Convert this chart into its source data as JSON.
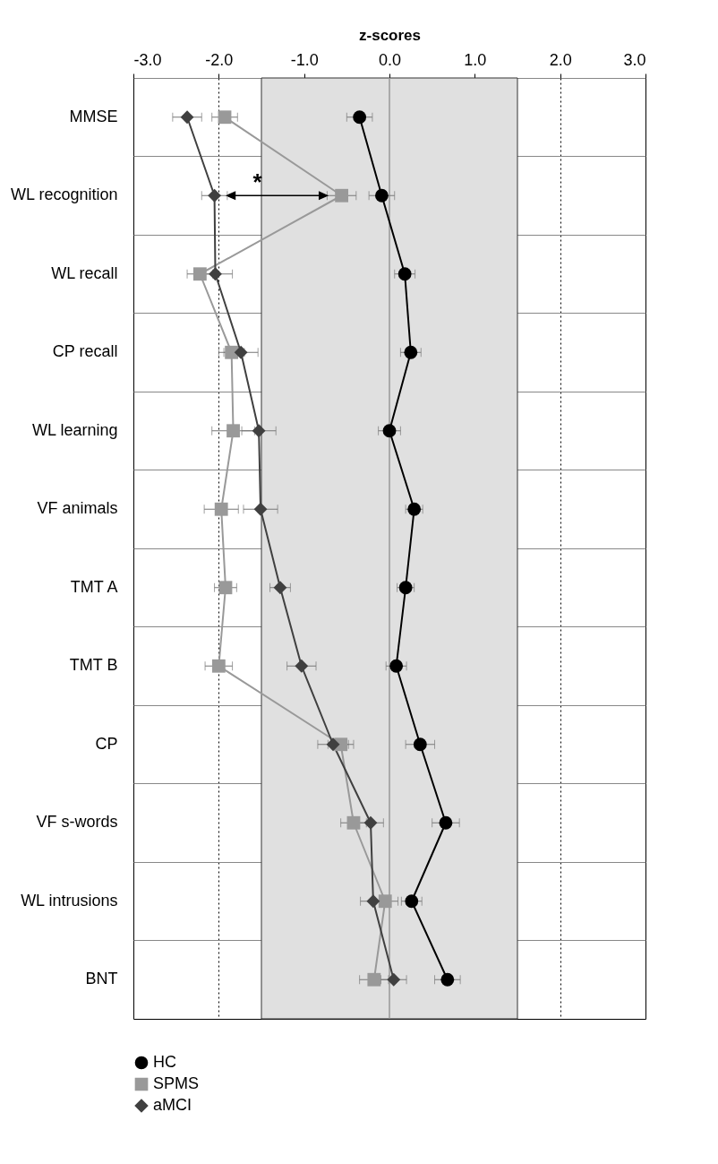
{
  "chart_data": {
    "type": "line",
    "orientation": "horizontal",
    "xlabel": "z-scores",
    "categories": [
      "MMSE",
      "WL recognition",
      "WL recall",
      "CP recall",
      "WL learning",
      "VF animals",
      "TMT A",
      "TMT B",
      "CP",
      "VF s-words",
      "WL intrusions",
      "BNT"
    ],
    "series": [
      {
        "name": "HC",
        "color": "#000000",
        "marker": "circle",
        "values": [
          -0.35,
          -0.09,
          0.18,
          0.25,
          0.0,
          0.29,
          0.19,
          0.08,
          0.36,
          0.66,
          0.26,
          0.68
        ],
        "errors": [
          0.15,
          0.15,
          0.12,
          0.12,
          0.13,
          0.1,
          0.1,
          0.12,
          0.17,
          0.16,
          0.12,
          0.15
        ]
      },
      {
        "name": "SPMS",
        "color": "#999999",
        "marker": "square",
        "values": [
          -1.93,
          -0.56,
          -2.22,
          -1.85,
          -1.83,
          -1.97,
          -1.92,
          -2.0,
          -0.57,
          -0.42,
          -0.05,
          -0.18
        ],
        "errors": [
          0.15,
          0.17,
          0.15,
          0.15,
          0.25,
          0.2,
          0.13,
          0.16,
          0.15,
          0.15,
          0.15,
          0.17
        ]
      },
      {
        "name": "aMCI",
        "color": "#404040",
        "marker": "diamond",
        "values": [
          -2.37,
          -2.05,
          -2.04,
          -1.74,
          -1.53,
          -1.51,
          -1.28,
          -1.03,
          -0.66,
          -0.22,
          -0.19,
          0.05
        ],
        "errors": [
          0.17,
          0.15,
          0.2,
          0.2,
          0.2,
          0.2,
          0.12,
          0.17,
          0.18,
          0.15,
          0.15,
          0.15
        ]
      }
    ],
    "xlim": [
      -3,
      3
    ],
    "xticks": [
      {
        "value": -3,
        "label": "-3.0"
      },
      {
        "value": -2,
        "label": "-2.0"
      },
      {
        "value": -1,
        "label": "-1.0"
      },
      {
        "value": 0,
        "label": "0.0"
      },
      {
        "value": 1,
        "label": "1.0"
      },
      {
        "value": 2,
        "label": "2.0"
      },
      {
        "value": 3,
        "label": "3.0"
      }
    ],
    "bands": [
      {
        "axis": "x",
        "from": -1.5,
        "to": 1.5,
        "color": "#e0e0e0"
      }
    ],
    "ref_lines": [
      {
        "axis": "x",
        "value": 0,
        "color": "#999999"
      }
    ],
    "annotations": [
      "*"
    ],
    "grid": true,
    "legend": "bottom"
  }
}
